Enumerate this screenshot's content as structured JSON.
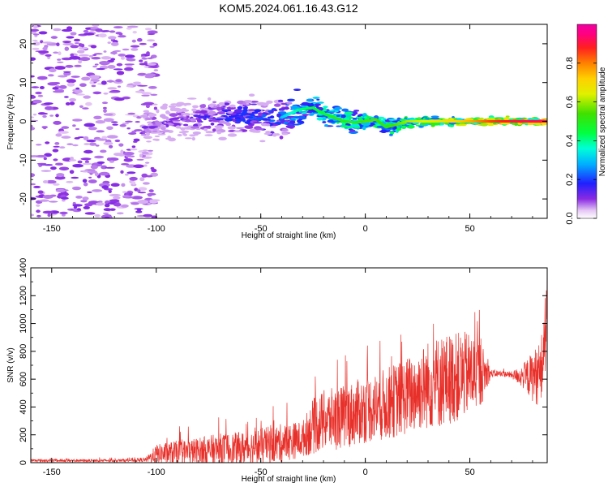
{
  "title": "KOM5.2024.061.16.43.G12",
  "chart_data": [
    {
      "type": "heatmap",
      "xlabel": "Height of straight line (km)",
      "ylabel": "Frequency (Hz)",
      "xlim": [
        -160,
        87
      ],
      "ylim": [
        -25,
        25
      ],
      "xticks": [
        -150,
        -100,
        -50,
        0,
        50
      ],
      "yticks": [
        -20,
        -10,
        0,
        10,
        20
      ],
      "colorbar": {
        "label": "Normalized spectral amplitude",
        "range": [
          0,
          1
        ],
        "ticks": [
          "0.0",
          "0.2",
          "0.4",
          "0.6",
          "0.8"
        ],
        "colormap": "gist_ncar-like (white-violet-blue-cyan-green-yellow-red-magenta)"
      },
      "ridge": {
        "x": [
          -105,
          -90,
          -75,
          -60,
          -50,
          -40,
          -32,
          -25,
          -20,
          -15,
          -10,
          -5,
          0,
          5,
          10,
          15,
          20,
          30,
          40,
          50,
          60,
          70,
          80,
          87
        ],
        "y": [
          -1,
          0,
          1,
          1.5,
          1,
          1,
          3,
          3.5,
          2,
          1,
          0,
          -0.3,
          0,
          0.5,
          -1.5,
          -0.8,
          0,
          0,
          0,
          0,
          0,
          0,
          0,
          0
        ],
        "amplitude": [
          0.15,
          0.15,
          0.2,
          0.25,
          0.25,
          0.3,
          0.4,
          0.45,
          0.45,
          0.5,
          0.5,
          0.5,
          0.55,
          0.55,
          0.5,
          0.55,
          0.6,
          0.65,
          0.7,
          0.75,
          0.85,
          0.9,
          0.92,
          0.9
        ]
      }
    },
    {
      "type": "line",
      "xlabel": "Height of straight line (km)",
      "ylabel": "SNR (v/v)",
      "xlim": [
        -160,
        87
      ],
      "ylim": [
        0,
        1400
      ],
      "xticks": [
        -150,
        -100,
        -50,
        0,
        50
      ],
      "yticks": [
        0,
        200,
        400,
        600,
        800,
        1000,
        1200,
        1400
      ],
      "series": [
        {
          "color": "#e8302a",
          "envelope": {
            "x": [
              -160,
              -140,
              -120,
              -105,
              -100,
              -90,
              -80,
              -70,
              -60,
              -50,
              -40,
              -30,
              -25,
              -20,
              -10,
              0,
              10,
              20,
              25,
              30,
              35,
              40,
              45,
              50,
              55,
              60,
              65,
              70,
              75,
              80,
              84,
              86,
              87
            ],
            "mean": [
              15,
              15,
              15,
              20,
              60,
              70,
              80,
              90,
              100,
              120,
              140,
              170,
              260,
              300,
              330,
              380,
              420,
              480,
              520,
              560,
              580,
              600,
              620,
              640,
              640,
              640,
              640,
              630,
              620,
              620,
              640,
              900,
              1200
            ],
            "spread": [
              10,
              10,
              10,
              15,
              70,
              90,
              100,
              120,
              120,
              130,
              140,
              130,
              200,
              220,
              230,
              240,
              260,
              280,
              300,
              320,
              340,
              330,
              320,
              300,
              250,
              30,
              20,
              25,
              80,
              180,
              250,
              300,
              250
            ]
          }
        }
      ]
    }
  ]
}
